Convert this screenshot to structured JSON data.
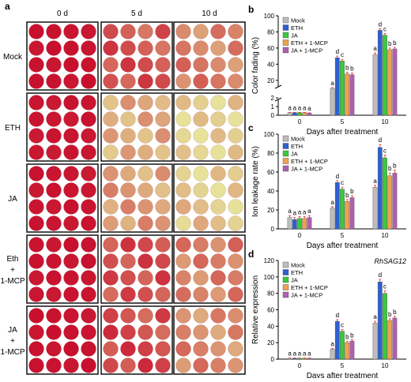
{
  "panel_a": {
    "letter": "a",
    "columns": [
      "0 d",
      "5 d",
      "10 d"
    ],
    "rows": [
      {
        "label_lines": [
          "Mock"
        ],
        "fading": [
          0.02,
          0.35,
          0.55
        ]
      },
      {
        "label_lines": [
          "ETH"
        ],
        "fading": [
          0.03,
          0.75,
          0.95
        ]
      },
      {
        "label_lines": [
          "JA"
        ],
        "fading": [
          0.03,
          0.7,
          0.9
        ]
      },
      {
        "label_lines": [
          "Eth",
          "+",
          "1-MCP"
        ],
        "fading": [
          0.02,
          0.3,
          0.55
        ]
      },
      {
        "label_lines": [
          "JA",
          "+",
          "1-MCP"
        ],
        "fading": [
          0.02,
          0.3,
          0.6
        ]
      }
    ],
    "colors": {
      "red": "#c8102e",
      "fade": "#e6e29a",
      "border": "#111111"
    }
  },
  "chart_data": [
    {
      "letter": "b",
      "type": "bar",
      "ylabel": "Color fading (%)",
      "xlabel": "Days after treatment",
      "categories": [
        "0",
        "5",
        "10"
      ],
      "ylim": [
        0,
        100
      ],
      "yticks": [
        "0",
        "1",
        "2",
        "20",
        "40",
        "60",
        "80",
        "100"
      ],
      "axis_break": true,
      "series": [
        {
          "name": "Mock",
          "color": "#bdbdbd",
          "values": [
            0.3,
            10,
            52
          ],
          "err": [
            0.03,
            1,
            2
          ],
          "letters": [
            "a",
            "a",
            "a"
          ]
        },
        {
          "name": "ETH",
          "color": "#2f5fd0",
          "values": [
            0.3,
            48,
            82
          ],
          "err": [
            0.03,
            2,
            2
          ],
          "letters": [
            "a",
            "d",
            "d"
          ]
        },
        {
          "name": "JA",
          "color": "#3cc83c",
          "values": [
            0.3,
            44,
            76
          ],
          "err": [
            0.03,
            2,
            2
          ],
          "letters": [
            "a",
            "c",
            "c"
          ]
        },
        {
          "name": "ETH + 1-MCP",
          "color": "#f0a050",
          "values": [
            0.3,
            28,
            58
          ],
          "err": [
            0.03,
            2,
            2
          ],
          "letters": [
            "a",
            "b",
            "b"
          ]
        },
        {
          "name": "JA + 1-MCP",
          "color": "#b060b0",
          "values": [
            0.25,
            27,
            59
          ],
          "err": [
            0.03,
            2,
            2
          ],
          "letters": [
            "a",
            "b",
            "b"
          ]
        }
      ]
    },
    {
      "letter": "c",
      "type": "bar",
      "ylabel": "Ion leakage rate (%)",
      "xlabel": "Days after treatment",
      "categories": [
        "0",
        "5",
        "10"
      ],
      "ylim": [
        0,
        100
      ],
      "yticks": [
        "0",
        "20",
        "40",
        "60",
        "80",
        "100"
      ],
      "axis_break": false,
      "series": [
        {
          "name": "Mock",
          "color": "#bdbdbd",
          "values": [
            12,
            22,
            44
          ],
          "err": [
            2,
            1.5,
            2
          ],
          "letters": [
            "a",
            "a",
            "a"
          ]
        },
        {
          "name": "ETH",
          "color": "#2f5fd0",
          "values": [
            10,
            49,
            86
          ],
          "err": [
            2,
            2,
            3
          ],
          "letters": [
            "a",
            "d",
            "d"
          ]
        },
        {
          "name": "JA",
          "color": "#3cc83c",
          "values": [
            11,
            42,
            75
          ],
          "err": [
            2,
            2,
            3
          ],
          "letters": [
            "a",
            "c",
            "c"
          ]
        },
        {
          "name": "ETH + 1-MCP",
          "color": "#f0a050",
          "values": [
            11,
            29,
            56
          ],
          "err": [
            2,
            2,
            3
          ],
          "letters": [
            "a",
            "b",
            "b"
          ]
        },
        {
          "name": "JA + 1-MCP",
          "color": "#b060b0",
          "values": [
            12,
            33,
            59
          ],
          "err": [
            2,
            2,
            3
          ],
          "letters": [
            "a",
            "b",
            "b"
          ]
        }
      ]
    },
    {
      "letter": "d",
      "type": "bar",
      "ylabel": "Relative expression",
      "xlabel": "Days after treatment",
      "gene": "RhSAG12",
      "categories": [
        "0",
        "5",
        "10"
      ],
      "ylim": [
        0,
        120
      ],
      "yticks": [
        "0",
        "20",
        "40",
        "60",
        "80",
        "100",
        "120"
      ],
      "axis_break": false,
      "series": [
        {
          "name": "Mock",
          "color": "#bdbdbd",
          "values": [
            1,
            12,
            44
          ],
          "err": [
            0.3,
            1,
            2
          ],
          "letters": [
            "a",
            "a",
            "a"
          ]
        },
        {
          "name": "ETH",
          "color": "#2f5fd0",
          "values": [
            1,
            46,
            94
          ],
          "err": [
            0.3,
            2,
            3
          ],
          "letters": [
            "a",
            "d",
            "d"
          ]
        },
        {
          "name": "JA",
          "color": "#3cc83c",
          "values": [
            1,
            34,
            80
          ],
          "err": [
            0.3,
            2,
            3
          ],
          "letters": [
            "a",
            "c",
            "c"
          ]
        },
        {
          "name": "ETH + 1-MCP",
          "color": "#f0a050",
          "values": [
            1,
            20,
            47
          ],
          "err": [
            0.3,
            1.5,
            2
          ],
          "letters": [
            "a",
            "b",
            "b"
          ]
        },
        {
          "name": "JA + 1-MCP",
          "color": "#b060b0",
          "values": [
            1,
            22,
            50
          ],
          "err": [
            0.3,
            1.5,
            2
          ],
          "letters": [
            "a",
            "b",
            "b"
          ]
        }
      ]
    }
  ]
}
